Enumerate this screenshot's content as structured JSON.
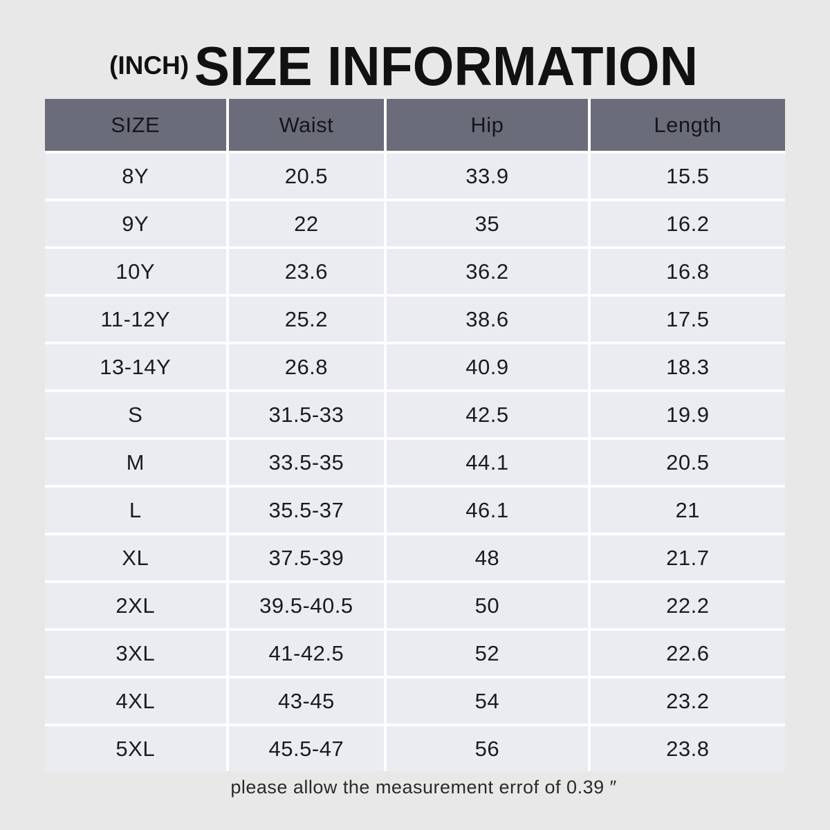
{
  "header": {
    "unit_label": "(INCH)",
    "title": "SIZE INFORMATION"
  },
  "footer": {
    "note": "please allow the measurement errof of 0.39 ″"
  },
  "colors": {
    "background": "#e8e8e8",
    "table_header_bg": "#6a6c7a",
    "table_row_bg": "#ebecf1",
    "separator": "#fdfdfd",
    "text": "#1b1b1b"
  },
  "chart_data": {
    "type": "table",
    "title": "SIZE INFORMATION",
    "unit": "INCH",
    "columns": [
      "SIZE",
      "Waist",
      "Hip",
      "Length"
    ],
    "rows": [
      [
        "8Y",
        "20.5",
        "33.9",
        "15.5"
      ],
      [
        "9Y",
        "22",
        "35",
        "16.2"
      ],
      [
        "10Y",
        "23.6",
        "36.2",
        "16.8"
      ],
      [
        "11-12Y",
        "25.2",
        "38.6",
        "17.5"
      ],
      [
        "13-14Y",
        "26.8",
        "40.9",
        "18.3"
      ],
      [
        "S",
        "31.5-33",
        "42.5",
        "19.9"
      ],
      [
        "M",
        "33.5-35",
        "44.1",
        "20.5"
      ],
      [
        "L",
        "35.5-37",
        "46.1",
        "21"
      ],
      [
        "XL",
        "37.5-39",
        "48",
        "21.7"
      ],
      [
        "2XL",
        "39.5-40.5",
        "50",
        "22.2"
      ],
      [
        "3XL",
        "41-42.5",
        "52",
        "22.6"
      ],
      [
        "4XL",
        "43-45",
        "54",
        "23.2"
      ],
      [
        "5XL",
        "45.5-47",
        "56",
        "23.8"
      ]
    ]
  }
}
